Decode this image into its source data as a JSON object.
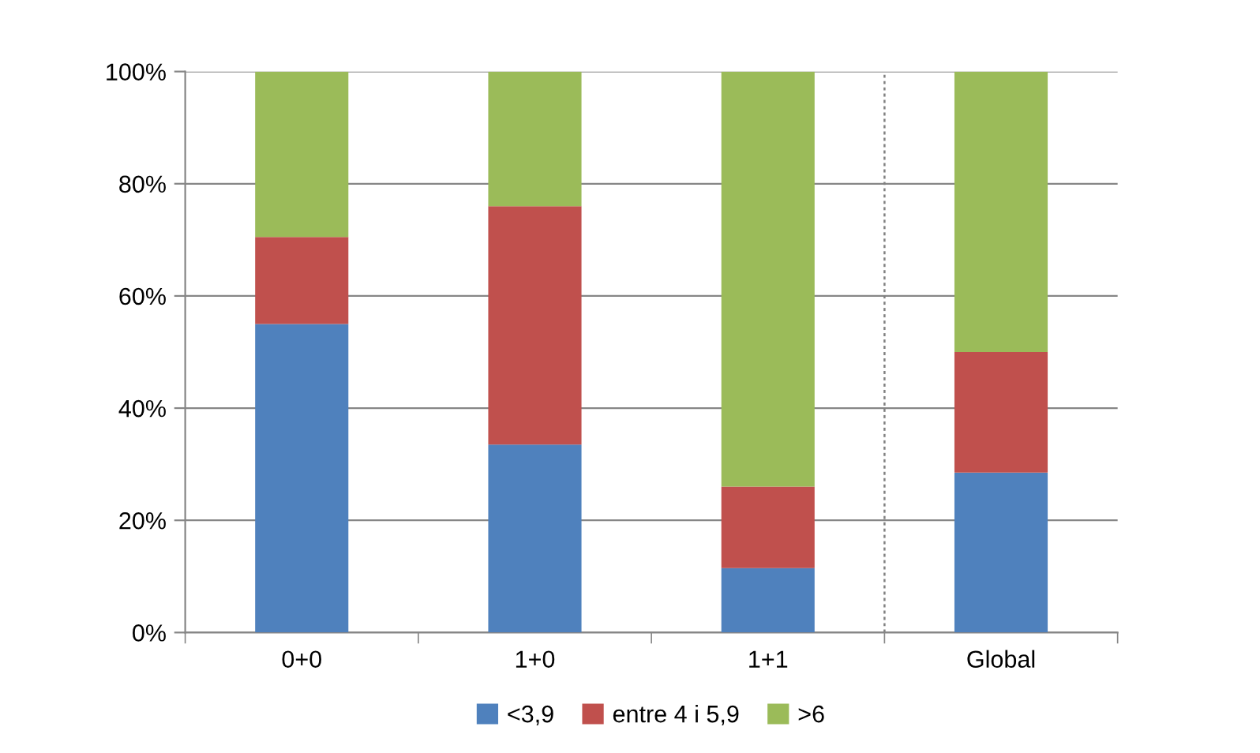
{
  "chart_data": {
    "type": "bar",
    "stacked": true,
    "categories": [
      "0+0",
      "1+0",
      "1+1",
      "Global"
    ],
    "series": [
      {
        "name": "<3,9",
        "color": "#4f81bd",
        "values": [
          55,
          33.5,
          11.5,
          28.5
        ]
      },
      {
        "name": "entre 4 i 5,9",
        "color": "#c0504d",
        "values": [
          15.5,
          42.5,
          14.5,
          21.5
        ]
      },
      {
        "name": ">6",
        "color": "#9bbb59",
        "values": [
          29.5,
          24,
          74,
          50
        ]
      }
    ],
    "ylim": [
      0,
      100
    ],
    "yticks": [
      {
        "value": 0,
        "label": "0%"
      },
      {
        "value": 20,
        "label": "20%"
      },
      {
        "value": 40,
        "label": "40%"
      },
      {
        "value": 60,
        "label": "60%"
      },
      {
        "value": 80,
        "label": "80%"
      },
      {
        "value": 100,
        "label": "100%"
      }
    ],
    "grid": "y",
    "legend": "bottom"
  }
}
